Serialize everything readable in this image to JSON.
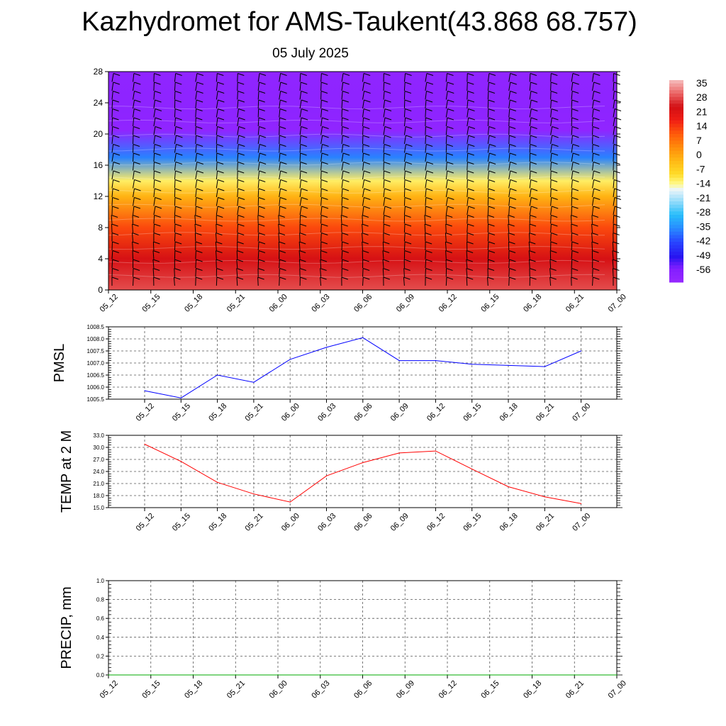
{
  "header": {
    "title": "Kazhydromet for AMS-Taukent(43.868 68.757)",
    "date": "05 July 2025"
  },
  "chart_data": [
    {
      "type": "heatmap",
      "title": "",
      "ylim": [
        0,
        28
      ],
      "yticks": [
        "0",
        "4",
        "8",
        "12",
        "16",
        "20",
        "24",
        "28"
      ],
      "x_categories": [
        "05_12",
        "05_15",
        "05_18",
        "05_21",
        "06_00",
        "06_03",
        "06_06",
        "06_09",
        "06_12",
        "06_15",
        "06_18",
        "06_21",
        "07_00"
      ],
      "colorbar": {
        "labels": [
          "35",
          "28",
          "21",
          "14",
          "7",
          "0",
          "-7",
          "-14",
          "-21",
          "-28",
          "-35",
          "-42",
          "-49",
          "-56"
        ],
        "range": [
          -63,
          42
        ]
      },
      "temperature_profile": {
        "heights": [
          0,
          4,
          8,
          12,
          14,
          17,
          20.5,
          23,
          28
        ],
        "values": [
          33,
          27,
          16,
          1,
          -10,
          -36,
          -61,
          -60,
          -61
        ]
      },
      "wind_barbs": true
    },
    {
      "type": "line",
      "ylabel": "PMSL",
      "ylim": [
        1005.5,
        1008.5
      ],
      "yticks": [
        "1005.5",
        "1006.0",
        "1006.5",
        "1007.0",
        "1007.5",
        "1008.0",
        "1008.5"
      ],
      "categories": [
        "05_12",
        "05_15",
        "05_18",
        "05_21",
        "06_00",
        "06_03",
        "06_06",
        "06_09",
        "06_12",
        "06_15",
        "06_18",
        "06_21",
        "07_00"
      ],
      "values": [
        1005.85,
        1005.55,
        1006.5,
        1006.2,
        1007.15,
        1007.65,
        1008.05,
        1007.1,
        1007.1,
        1006.95,
        1006.9,
        1006.85,
        1007.5
      ],
      "color": "#0000ff",
      "grid": true
    },
    {
      "type": "line",
      "ylabel": "TEMP at 2 M",
      "ylim": [
        15.0,
        33.0
      ],
      "yticks": [
        "15.0",
        "18.0",
        "21.0",
        "24.0",
        "27.0",
        "30.0",
        "33.0"
      ],
      "categories": [
        "05_12",
        "05_15",
        "05_18",
        "05_21",
        "06_00",
        "06_03",
        "06_06",
        "06_09",
        "06_12",
        "06_15",
        "06_18",
        "06_21",
        "07_00"
      ],
      "values": [
        30.8,
        26.5,
        21.3,
        18.4,
        16.4,
        22.9,
        26.2,
        28.6,
        29.1,
        24.6,
        20.2,
        17.7,
        16.0
      ],
      "color": "#ff0000",
      "grid": true
    },
    {
      "type": "line",
      "ylabel": "PRECIP, mm",
      "ylim": [
        0.0,
        1.0
      ],
      "yticks": [
        "0.0",
        "0.2",
        "0.4",
        "0.6",
        "0.8",
        "1.0"
      ],
      "categories": [
        "05_12",
        "05_15",
        "05_18",
        "05_21",
        "06_00",
        "06_03",
        "06_06",
        "06_09",
        "06_12",
        "06_15",
        "06_18",
        "06_21",
        "07_00"
      ],
      "values": [
        0,
        0,
        0,
        0,
        0,
        0,
        0,
        0,
        0,
        0,
        0,
        0,
        0
      ],
      "color": "#00aa00",
      "grid": true
    }
  ]
}
